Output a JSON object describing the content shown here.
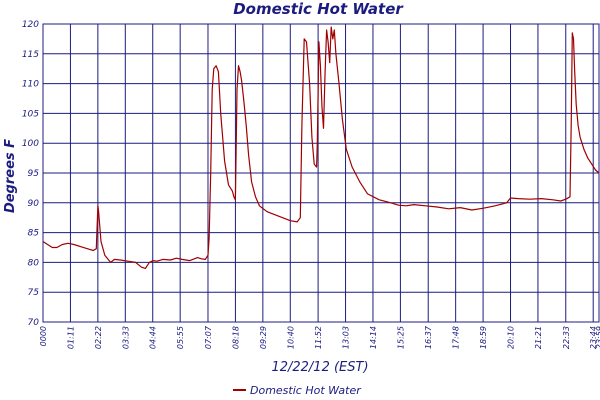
{
  "chart_data": {
    "type": "line",
    "title": "Domestic Hot Water",
    "xlabel": "12/22/12 (EST)",
    "ylabel": "Degrees F",
    "ylim": [
      70,
      120
    ],
    "yticks": [
      70,
      75,
      80,
      85,
      90,
      95,
      100,
      105,
      110,
      115,
      120
    ],
    "xlim": [
      "00:00",
      "23:59"
    ],
    "xticks": [
      "0000",
      "01:11",
      "02:22",
      "03:33",
      "04:44",
      "05:55",
      "07:07",
      "08:18",
      "09:29",
      "10:40",
      "11:52",
      "13:03",
      "14:14",
      "15:25",
      "16:37",
      "17:48",
      "18:59",
      "20:10",
      "21:21",
      "22:33",
      "23:44",
      "23:59"
    ],
    "grid": true,
    "legend_position": "bottom",
    "colors": {
      "series": "#a00000",
      "grid": "#1c1c80",
      "text": "#1c1c80"
    },
    "series": [
      {
        "name": "Domestic Hot Water",
        "x": [
          "00:00",
          "00:12",
          "00:24",
          "00:36",
          "00:50",
          "01:05",
          "01:20",
          "01:40",
          "02:00",
          "02:10",
          "02:18",
          "02:22",
          "02:24",
          "02:30",
          "02:40",
          "02:55",
          "03:05",
          "03:20",
          "03:40",
          "04:00",
          "04:15",
          "04:25",
          "04:35",
          "04:45",
          "04:55",
          "05:10",
          "05:30",
          "05:45",
          "06:00",
          "06:20",
          "06:40",
          "06:50",
          "07:00",
          "07:07",
          "07:10",
          "07:14",
          "07:18",
          "07:22",
          "07:28",
          "07:34",
          "07:40",
          "07:50",
          "08:00",
          "08:10",
          "08:14",
          "08:18",
          "08:22",
          "08:26",
          "08:30",
          "08:34",
          "08:40",
          "08:46",
          "08:52",
          "09:00",
          "09:10",
          "09:20",
          "09:40",
          "10:00",
          "10:20",
          "10:40",
          "10:58",
          "11:06",
          "11:10",
          "11:16",
          "11:22",
          "11:30",
          "11:36",
          "11:42",
          "11:48",
          "11:50",
          "11:54",
          "11:58",
          "12:02",
          "12:06",
          "12:10",
          "12:14",
          "12:18",
          "12:22",
          "12:26",
          "12:30",
          "12:34",
          "12:38",
          "12:46",
          "12:55",
          "13:05",
          "13:20",
          "13:40",
          "14:00",
          "14:30",
          "15:00",
          "15:20",
          "15:40",
          "16:00",
          "16:30",
          "17:00",
          "17:30",
          "18:00",
          "18:30",
          "19:00",
          "19:30",
          "20:00",
          "20:10",
          "20:30",
          "21:00",
          "21:30",
          "22:00",
          "22:20",
          "22:33",
          "22:44",
          "22:47",
          "22:50",
          "22:53",
          "22:56",
          "23:00",
          "23:05",
          "23:10",
          "23:20",
          "23:30",
          "23:40",
          "23:50",
          "23:59"
        ],
        "values": [
          83.5,
          83.0,
          82.5,
          82.5,
          83.0,
          83.2,
          83.0,
          82.6,
          82.2,
          82.0,
          82.3,
          89.5,
          88.5,
          83.5,
          81.2,
          80.0,
          80.5,
          80.4,
          80.2,
          80.0,
          79.2,
          79.0,
          80.0,
          80.3,
          80.2,
          80.5,
          80.4,
          80.7,
          80.5,
          80.3,
          80.8,
          80.6,
          80.5,
          81.2,
          84.0,
          95.0,
          109.0,
          112.5,
          113.0,
          112.0,
          105.0,
          97.0,
          93.0,
          92.0,
          91.0,
          90.5,
          109.0,
          113.0,
          112.0,
          110.5,
          107.0,
          103.0,
          98.0,
          93.5,
          91.0,
          89.5,
          88.5,
          88.0,
          87.5,
          87.0,
          86.8,
          87.5,
          103.0,
          117.5,
          117.0,
          110.0,
          101.0,
          96.5,
          96.0,
          100.0,
          117.0,
          113.0,
          106.0,
          102.5,
          112.0,
          119.0,
          117.0,
          113.5,
          119.5,
          117.5,
          119.0,
          115.0,
          110.0,
          104.0,
          99.0,
          96.0,
          93.5,
          91.5,
          90.5,
          90.0,
          89.6,
          89.5,
          89.7,
          89.5,
          89.3,
          89.0,
          89.2,
          88.8,
          89.1,
          89.5,
          90.0,
          90.8,
          90.7,
          90.6,
          90.7,
          90.5,
          90.3,
          90.6,
          91.0,
          103.0,
          118.5,
          117.5,
          112.0,
          106.5,
          103.0,
          101.0,
          99.0,
          97.5,
          96.5,
          95.5,
          95.0
        ]
      }
    ]
  }
}
